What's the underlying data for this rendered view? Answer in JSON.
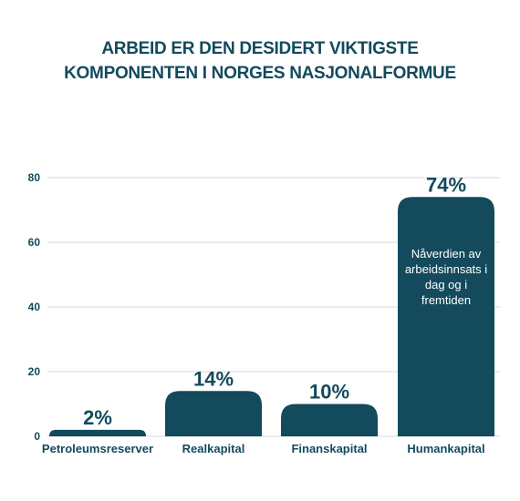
{
  "chart_data": {
    "type": "bar",
    "title_lines": [
      "ARBEID ER DEN DESIDERT VIKTIGSTE",
      "KOMPONENTEN I NORGES NASJONALFORMUE"
    ],
    "categories": [
      "Petroleumsreserver",
      "Realkapital",
      "Finanskapital",
      "Humankapital"
    ],
    "values": [
      2,
      14,
      10,
      74
    ],
    "data_labels": [
      "2%",
      "14%",
      "10%",
      "74%"
    ],
    "yticks": [
      0,
      20,
      40,
      60,
      80
    ],
    "ylim": [
      0,
      80
    ],
    "grid": true,
    "bar_color": "#134a5c",
    "grid_color": "#d9d9d9",
    "annotation": {
      "category": "Humankapital",
      "lines": [
        "Nåverdien av",
        "arbeidsinnsats i",
        "dag og i",
        "fremtiden"
      ]
    }
  }
}
